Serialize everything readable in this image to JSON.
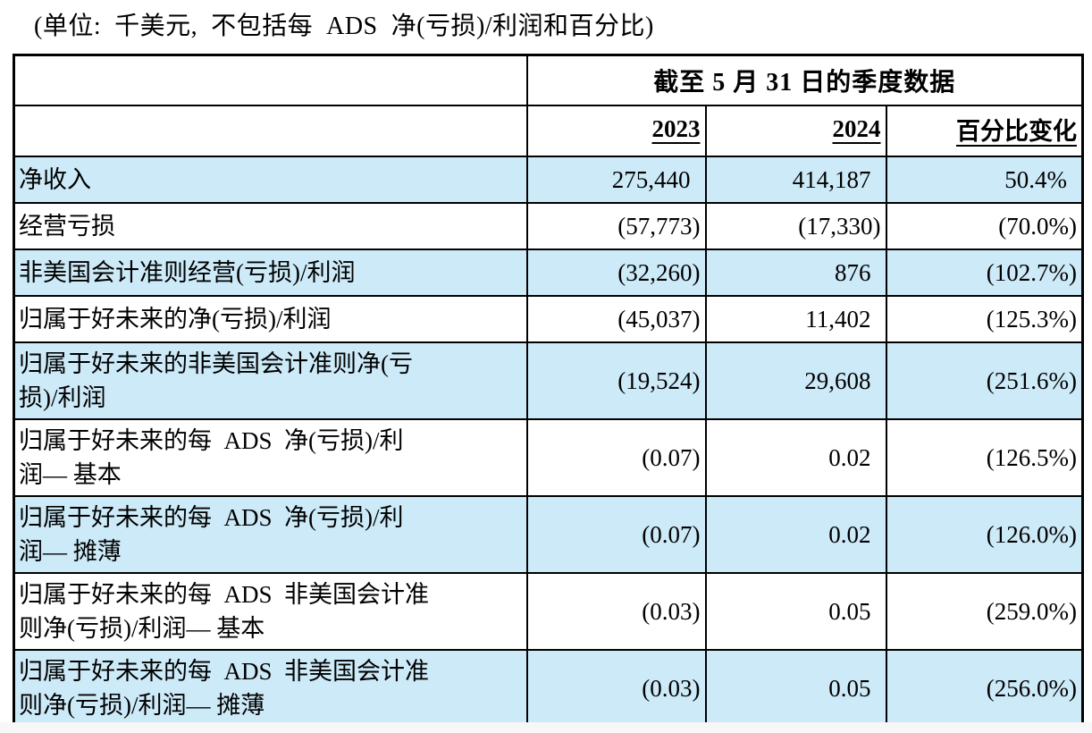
{
  "caption": "(单位:  千美元,  不包括每  ADS  净(亏损)/利润和百分比)",
  "table": {
    "group_header": "截至 5 月 31 日的季度数据",
    "columns": [
      "2023",
      "2024",
      "百分比变化"
    ],
    "rows": [
      {
        "label": "净收入",
        "y2023": "275,440",
        "y2024": "414,187",
        "pct": "50.4%"
      },
      {
        "label": "经营亏损",
        "y2023": "(57,773)",
        "y2024": "(17,330)",
        "pct": "(70.0%)"
      },
      {
        "label": "非美国会计准则经营(亏损)/利润",
        "y2023": "(32,260)",
        "y2024": "876",
        "pct": "(102.7%)"
      },
      {
        "label": "归属于好未来的净(亏损)/利润",
        "y2023": "(45,037)",
        "y2024": "11,402",
        "pct": "(125.3%)"
      },
      {
        "label": "归属于好未来的非美国会计准则净(亏\n损)/利润",
        "y2023": "(19,524)",
        "y2024": "29,608",
        "pct": "(251.6%)"
      },
      {
        "label": "归属于好未来的每  ADS  净(亏损)/利\n润— 基本",
        "y2023": "(0.07)",
        "y2024": "0.02",
        "pct": "(126.5%)"
      },
      {
        "label": "归属于好未来的每  ADS  净(亏损)/利\n润— 摊薄",
        "y2023": "(0.07)",
        "y2024": "0.02",
        "pct": "(126.0%)"
      },
      {
        "label": "归属于好未来的每  ADS  非美国会计准\n则净(亏损)/利润— 基本",
        "y2023": "(0.03)",
        "y2024": "0.05",
        "pct": "(259.0%)"
      },
      {
        "label": "归属于好未来的每  ADS  非美国会计准\n则净(亏损)/利润— 摊薄",
        "y2023": "(0.03)",
        "y2024": "0.05",
        "pct": "(256.0%)"
      }
    ]
  },
  "colors": {
    "alt_row_bg": "#cdeaf8",
    "border": "#000000",
    "page_bg": "#ffffff",
    "bottom_strip_bg": "#f7f7f7"
  }
}
